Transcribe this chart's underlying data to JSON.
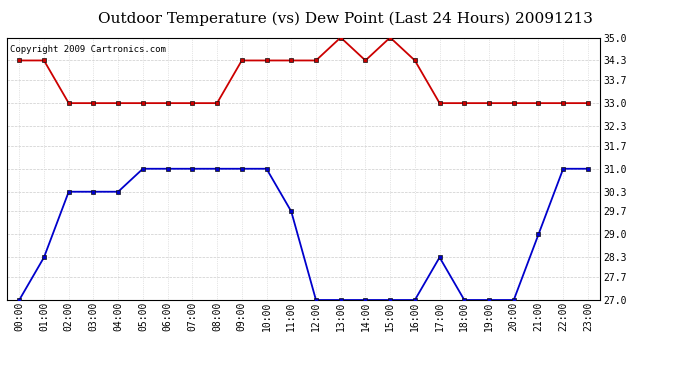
{
  "title": "Outdoor Temperature (vs) Dew Point (Last 24 Hours) 20091213",
  "copyright": "Copyright 2009 Cartronics.com",
  "hours": [
    "00:00",
    "01:00",
    "02:00",
    "03:00",
    "04:00",
    "05:00",
    "06:00",
    "07:00",
    "08:00",
    "09:00",
    "10:00",
    "11:00",
    "12:00",
    "13:00",
    "14:00",
    "15:00",
    "16:00",
    "17:00",
    "18:00",
    "19:00",
    "20:00",
    "21:00",
    "22:00",
    "23:00"
  ],
  "temp_blue": [
    27.0,
    28.3,
    30.3,
    30.3,
    30.3,
    31.0,
    31.0,
    31.0,
    31.0,
    31.0,
    31.0,
    29.7,
    27.0,
    27.0,
    27.0,
    27.0,
    27.0,
    28.3,
    27.0,
    27.0,
    27.0,
    29.0,
    31.0,
    31.0
  ],
  "dew_red": [
    34.3,
    34.3,
    33.0,
    33.0,
    33.0,
    33.0,
    33.0,
    33.0,
    33.0,
    34.3,
    34.3,
    34.3,
    34.3,
    35.0,
    34.3,
    35.0,
    34.3,
    33.0,
    33.0,
    33.0,
    33.0,
    33.0,
    33.0,
    33.0
  ],
  "temp_color": "#0000cc",
  "dew_color": "#cc0000",
  "bg_color": "#ffffff",
  "plot_bg": "#ffffff",
  "grid_color": "#cccccc",
  "ylim": [
    27.0,
    35.0
  ],
  "yticks": [
    27.0,
    27.7,
    28.3,
    29.0,
    29.7,
    30.3,
    31.0,
    31.7,
    32.3,
    33.0,
    33.7,
    34.3,
    35.0
  ],
  "title_fontsize": 11,
  "copyright_fontsize": 6.5,
  "tick_fontsize": 7
}
